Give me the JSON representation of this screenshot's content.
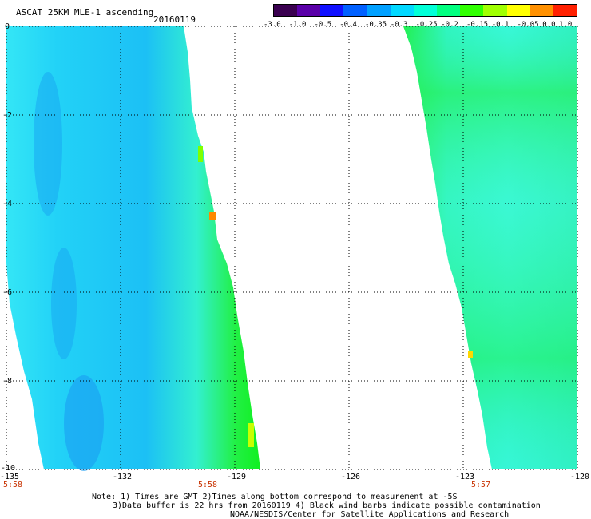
{
  "header": {
    "title": "ASCAT 25KM MLE-1 ascending",
    "date": "20160119"
  },
  "colorbar": {
    "labels": [
      "-3.0",
      "-1.0",
      "-0.5",
      "-0.4",
      "-0.35",
      "-0.3",
      "-0.25",
      "-0.2",
      "-0.15",
      "-0.1",
      "-0.05",
      "0.0",
      "1.0"
    ],
    "colors": [
      "#3a0050",
      "#5a00a8",
      "#1010ff",
      "#0060ff",
      "#00a0ff",
      "#00d8ff",
      "#00ffd8",
      "#00ff80",
      "#30ff00",
      "#a0ff00",
      "#ffff00",
      "#ff9000",
      "#ff2000"
    ]
  },
  "axes": {
    "y_ticks": [
      "0",
      "-2",
      "-4",
      "-6",
      "-8",
      "-10"
    ],
    "x_ticks": [
      "-135",
      "-132",
      "-129",
      "-126",
      "-123",
      "-120"
    ]
  },
  "times": [
    "5:58",
    "5:58",
    "5:57"
  ],
  "notes": {
    "line1": "Note: 1) Times are GMT 2)Times along bottom correspond to measurement at -5S",
    "line2": "3)Data buffer is 22 hrs from 20160119 4) Black wind barbs indicate possible contamination",
    "line3": "NOAA/NESDIS/Center for Satellite Applications and Research"
  }
}
